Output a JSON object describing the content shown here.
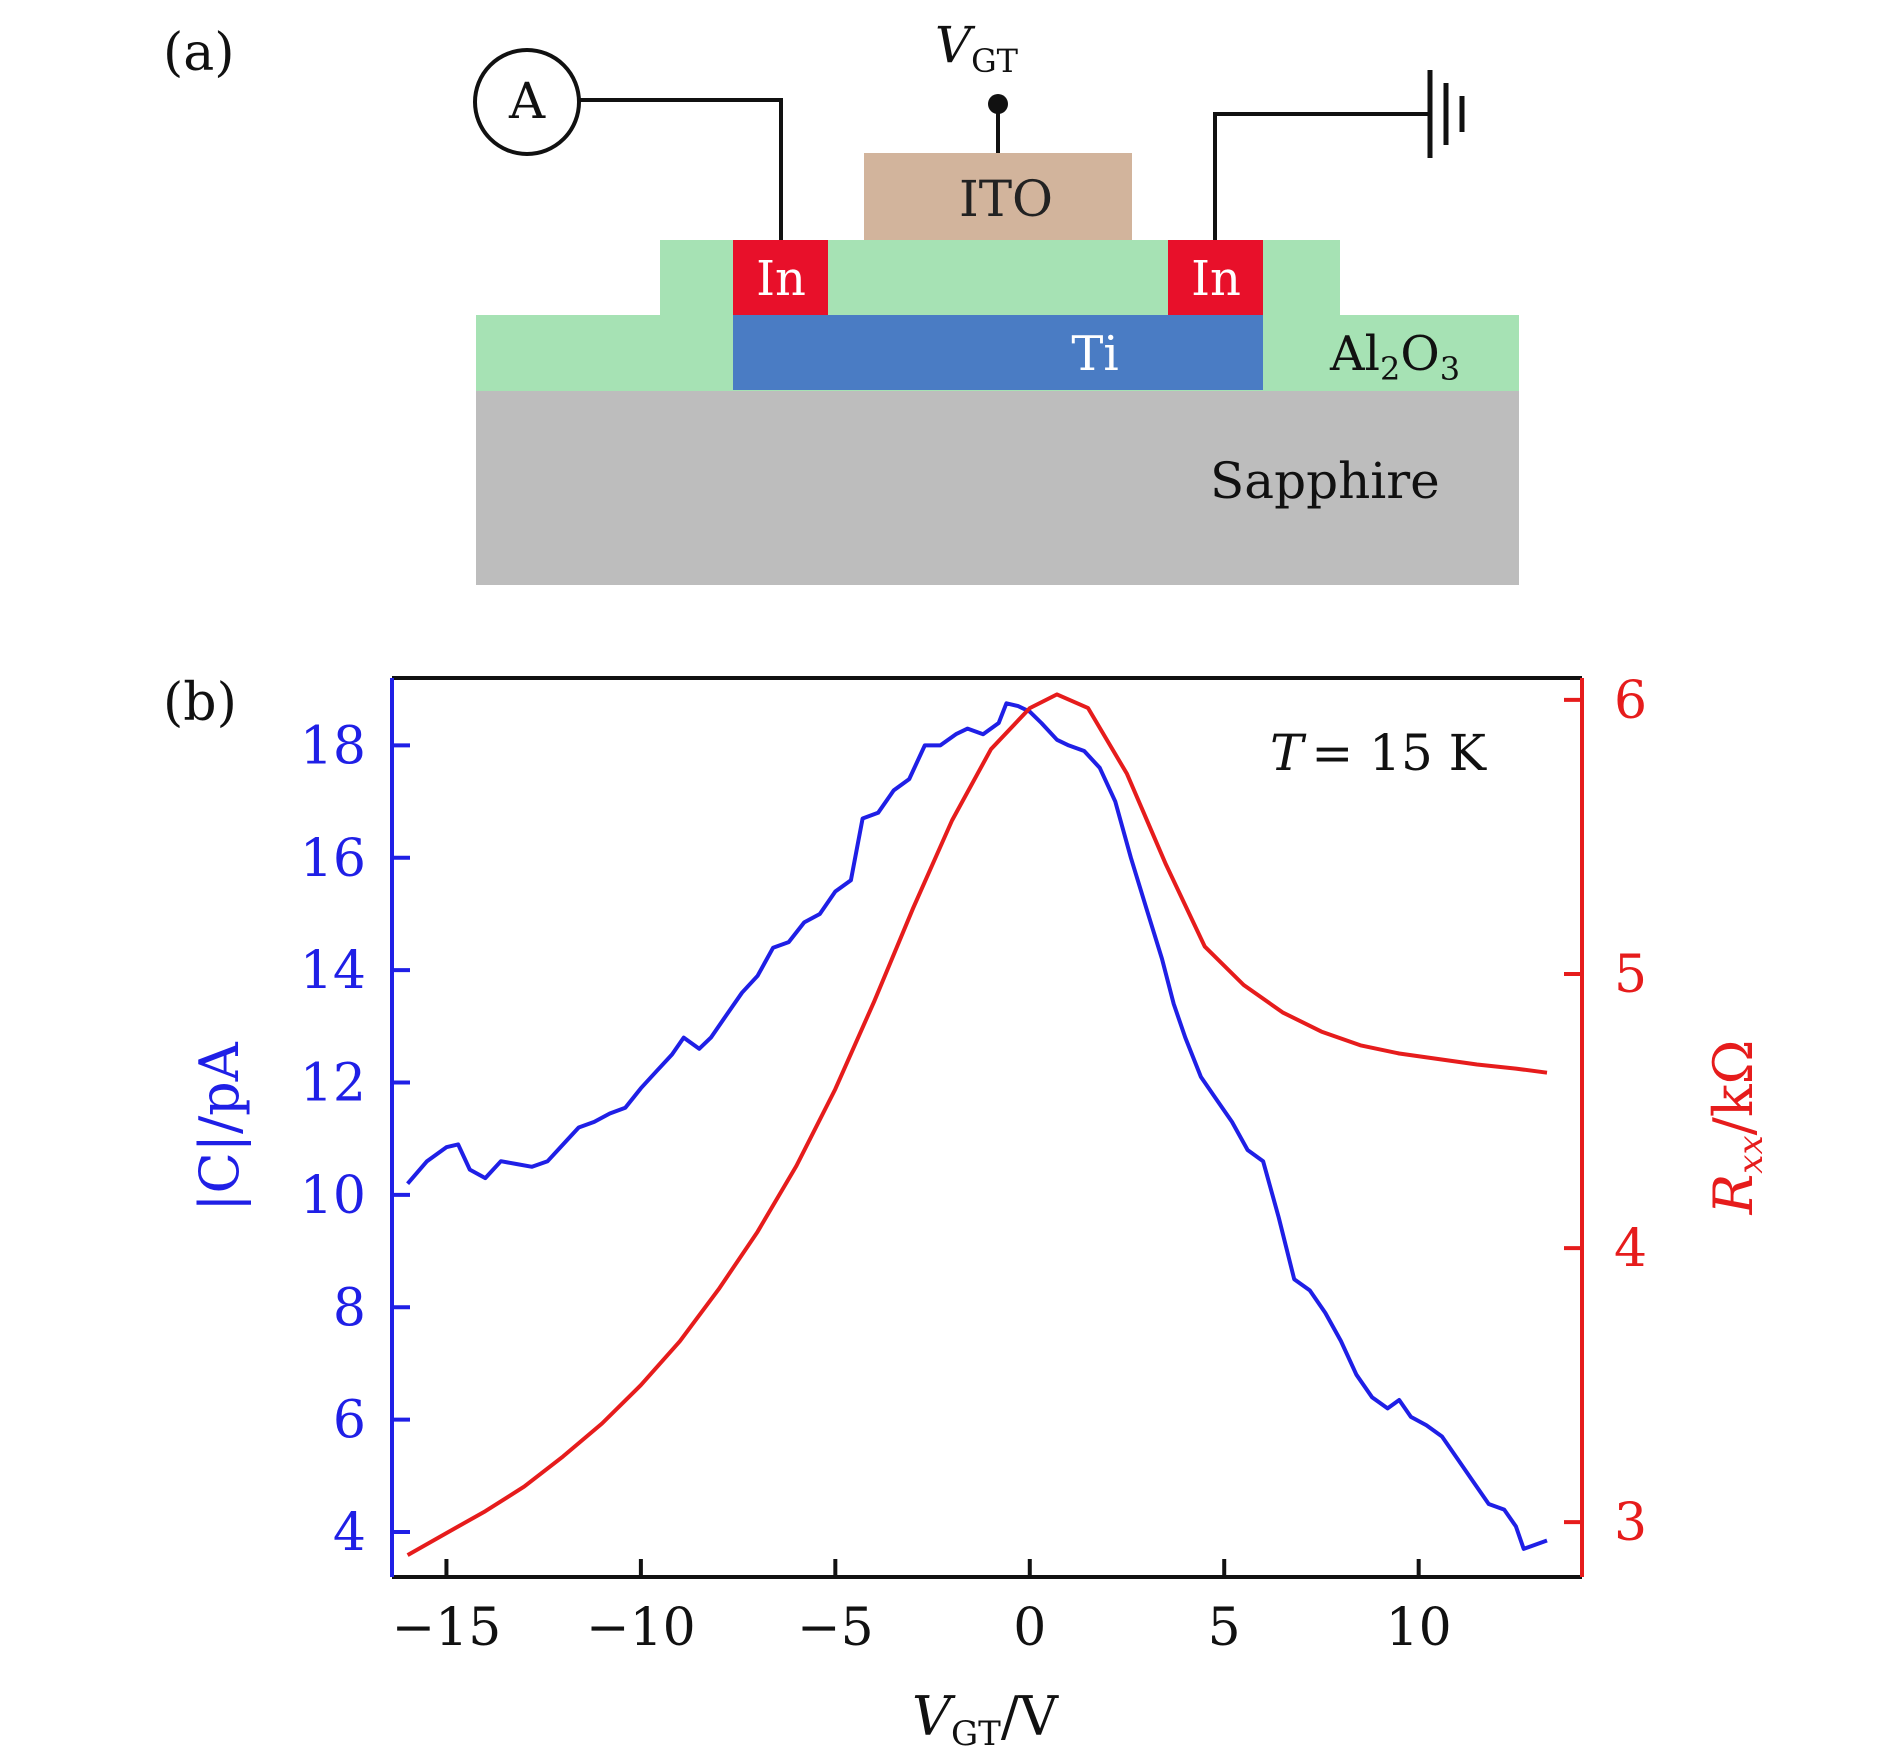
{
  "panel_a": {
    "label": "(a)",
    "ammeter": "A",
    "gate_voltage": {
      "main": "V",
      "sub": "GT"
    },
    "layers": {
      "ito": "ITO",
      "in_left": "In",
      "in_right": "In",
      "ti": "Ti",
      "al2o3": {
        "a": "Al",
        "s1": "2",
        "b": "O",
        "s2": "3"
      },
      "sapphire": "Sapphire"
    },
    "colors": {
      "ito": "#d2b49c",
      "indium": "#e8102a",
      "ti": "#4a7cc4",
      "al2o3": "#a6e2b4",
      "sapphire": "#bdbdbd"
    }
  },
  "panel_b": {
    "label": "(b)",
    "annotation": {
      "T": "T",
      "rest": "= 15 K"
    },
    "xlabel": {
      "main": "V",
      "sub": "GT",
      "unit": "/V"
    },
    "ylabel_left": "|C|/pA",
    "ylabel_right": {
      "main": "R",
      "sub": "xx",
      "unit": "/kΩ"
    },
    "colors": {
      "left": "#1f1fe6",
      "right": "#e61c1c",
      "axis": "#111111"
    }
  },
  "chart_data": {
    "type": "line",
    "x": {
      "label": "VGT/V",
      "lim": [
        -16.4,
        14.2
      ],
      "ticks": [
        -15,
        -10,
        -5,
        0,
        5,
        10
      ],
      "tick_labels": [
        "−15",
        "−10",
        "−5",
        "0",
        "5",
        "10"
      ]
    },
    "y_left": {
      "label": "|C|/pA",
      "lim": [
        3.2,
        19.2
      ],
      "ticks": [
        4,
        6,
        8,
        10,
        12,
        14,
        16,
        18
      ]
    },
    "y_right": {
      "label": "Rxx/kΩ",
      "lim": [
        2.8,
        6.08
      ],
      "ticks": [
        3,
        4,
        5,
        6
      ]
    },
    "series": [
      {
        "name": "|C|",
        "axis": "left",
        "points": [
          [
            -16.0,
            10.2
          ],
          [
            -15.5,
            10.6
          ],
          [
            -15.0,
            10.85
          ],
          [
            -14.7,
            10.9
          ],
          [
            -14.4,
            10.45
          ],
          [
            -14.0,
            10.3
          ],
          [
            -13.6,
            10.6
          ],
          [
            -13.2,
            10.55
          ],
          [
            -12.8,
            10.5
          ],
          [
            -12.4,
            10.6
          ],
          [
            -12.0,
            10.9
          ],
          [
            -11.6,
            11.2
          ],
          [
            -11.2,
            11.3
          ],
          [
            -10.8,
            11.45
          ],
          [
            -10.4,
            11.55
          ],
          [
            -10.0,
            11.9
          ],
          [
            -9.6,
            12.2
          ],
          [
            -9.2,
            12.5
          ],
          [
            -8.9,
            12.8
          ],
          [
            -8.5,
            12.6
          ],
          [
            -8.2,
            12.8
          ],
          [
            -7.8,
            13.2
          ],
          [
            -7.4,
            13.6
          ],
          [
            -7.0,
            13.9
          ],
          [
            -6.6,
            14.4
          ],
          [
            -6.2,
            14.5
          ],
          [
            -5.8,
            14.85
          ],
          [
            -5.4,
            15.0
          ],
          [
            -5.0,
            15.4
          ],
          [
            -4.6,
            15.6
          ],
          [
            -4.3,
            16.7
          ],
          [
            -3.9,
            16.8
          ],
          [
            -3.5,
            17.2
          ],
          [
            -3.1,
            17.4
          ],
          [
            -2.7,
            18.0
          ],
          [
            -2.3,
            18.0
          ],
          [
            -1.9,
            18.2
          ],
          [
            -1.6,
            18.3
          ],
          [
            -1.2,
            18.2
          ],
          [
            -0.8,
            18.4
          ],
          [
            -0.6,
            18.75
          ],
          [
            -0.3,
            18.7
          ],
          [
            0.0,
            18.6
          ],
          [
            0.3,
            18.4
          ],
          [
            0.7,
            18.1
          ],
          [
            1.0,
            18.0
          ],
          [
            1.4,
            17.9
          ],
          [
            1.8,
            17.6
          ],
          [
            2.2,
            17.0
          ],
          [
            2.6,
            16.0
          ],
          [
            3.0,
            15.1
          ],
          [
            3.4,
            14.2
          ],
          [
            3.7,
            13.4
          ],
          [
            4.0,
            12.8
          ],
          [
            4.4,
            12.1
          ],
          [
            4.8,
            11.7
          ],
          [
            5.2,
            11.3
          ],
          [
            5.6,
            10.8
          ],
          [
            6.0,
            10.6
          ],
          [
            6.4,
            9.6
          ],
          [
            6.8,
            8.5
          ],
          [
            7.2,
            8.3
          ],
          [
            7.6,
            7.9
          ],
          [
            8.0,
            7.4
          ],
          [
            8.4,
            6.8
          ],
          [
            8.8,
            6.4
          ],
          [
            9.2,
            6.2
          ],
          [
            9.5,
            6.35
          ],
          [
            9.8,
            6.05
          ],
          [
            10.2,
            5.9
          ],
          [
            10.6,
            5.7
          ],
          [
            11.0,
            5.3
          ],
          [
            11.4,
            4.9
          ],
          [
            11.8,
            4.5
          ],
          [
            12.2,
            4.4
          ],
          [
            12.5,
            4.1
          ],
          [
            12.7,
            3.7
          ],
          [
            12.9,
            3.75
          ],
          [
            13.3,
            3.85
          ]
        ]
      },
      {
        "name": "Rxx",
        "axis": "right",
        "points": [
          [
            -16.0,
            2.88
          ],
          [
            -15.0,
            2.96
          ],
          [
            -14.0,
            3.04
          ],
          [
            -13.0,
            3.13
          ],
          [
            -12.0,
            3.24
          ],
          [
            -11.0,
            3.36
          ],
          [
            -10.0,
            3.5
          ],
          [
            -9.0,
            3.66
          ],
          [
            -8.0,
            3.85
          ],
          [
            -7.0,
            4.06
          ],
          [
            -6.0,
            4.3
          ],
          [
            -5.0,
            4.58
          ],
          [
            -4.0,
            4.9
          ],
          [
            -3.0,
            5.24
          ],
          [
            -2.0,
            5.56
          ],
          [
            -1.0,
            5.82
          ],
          [
            0.0,
            5.97
          ],
          [
            0.7,
            6.02
          ],
          [
            1.5,
            5.97
          ],
          [
            2.5,
            5.73
          ],
          [
            3.5,
            5.4
          ],
          [
            4.5,
            5.1
          ],
          [
            5.5,
            4.96
          ],
          [
            6.5,
            4.86
          ],
          [
            7.5,
            4.79
          ],
          [
            8.5,
            4.74
          ],
          [
            9.5,
            4.71
          ],
          [
            10.5,
            4.69
          ],
          [
            11.5,
            4.67
          ],
          [
            12.5,
            4.655
          ],
          [
            13.3,
            4.64
          ]
        ]
      }
    ]
  }
}
